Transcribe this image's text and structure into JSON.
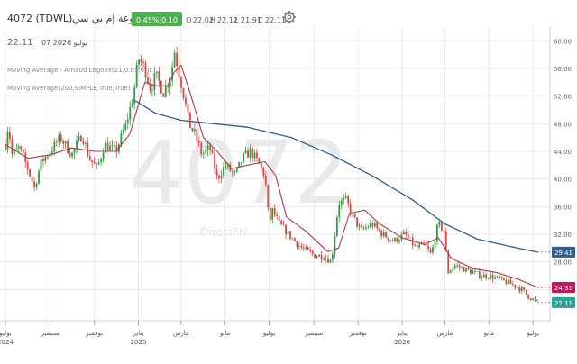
{
  "header": {
    "symbol": "4072 (TDWL)",
    "company": "مجموعة إم بي سي",
    "change_badge": "0.45%|0.10",
    "ohlc": {
      "o_label": "O",
      "o": "22.02",
      "h_label": "H",
      "h": "22.12",
      "l_label": "L",
      "l": "21.91",
      "c_label": "C",
      "c": "22.11"
    },
    "last_price": "22.11",
    "date": "07 2026 يوليو"
  },
  "watermark": {
    "symbol": "4072",
    "brand": "DirectFN"
  },
  "indicators": [
    {
      "label": "Moving Average - Arnaud Legoux(21,0.85,6,Tr...",
      "color": "#b03a48"
    },
    {
      "label": "Moving Average(200,SIMPLE,True,True)",
      "color": "#2f5d8c"
    }
  ],
  "colors": {
    "up": "#2e9e3e",
    "down": "#d94848",
    "alma": "#b03a48",
    "sma": "#2f5d8c",
    "grid": "#e4e4e4",
    "badge_green": "#4caf50",
    "last_badge": "#26a69a"
  },
  "icons": {
    "settings": "gear-icon"
  },
  "chart_data": {
    "type": "candlestick",
    "yaxis": {
      "min": 20,
      "max": 62,
      "ticks": [
        "60.00",
        "56.00",
        "52.00",
        "48.00",
        "44.00",
        "40.00",
        "36.00",
        "32.00",
        "28.00",
        "24.00"
      ],
      "position": "right",
      "grid": true
    },
    "xaxis": {
      "ticks": [
        {
          "label": "يوليو",
          "sub": "2024",
          "date": "2024-07-01"
        },
        {
          "label": "سبتمبر",
          "date": "2024-09-01"
        },
        {
          "label": "نوفمبر",
          "date": "2024-11-01"
        },
        {
          "label": "يناير",
          "sub": "2025",
          "date": "2025-01-01"
        },
        {
          "label": "مارس",
          "date": "2025-03-01"
        },
        {
          "label": "مايو",
          "date": "2025-05-01"
        },
        {
          "label": "يوليو",
          "date": "2025-07-01"
        },
        {
          "label": "سبتمبر",
          "date": "2025-09-01"
        },
        {
          "label": "نوفمبر",
          "date": "2025-11-01"
        },
        {
          "label": "يناير",
          "sub": "2026",
          "date": "2026-01-01"
        },
        {
          "label": "مارس",
          "date": "2026-03-01"
        },
        {
          "label": "مايو",
          "date": "2026-05-01"
        },
        {
          "label": "يوليو",
          "date": "2026-07-01"
        }
      ]
    },
    "price_path": [
      [
        "2024-07-01",
        45.0
      ],
      [
        "2024-07-05",
        48.0
      ],
      [
        "2024-07-10",
        43.5
      ],
      [
        "2024-07-20",
        44.5
      ],
      [
        "2024-08-01",
        41.5
      ],
      [
        "2024-08-10",
        38.8
      ],
      [
        "2024-08-20",
        42.5
      ],
      [
        "2024-09-01",
        44.0
      ],
      [
        "2024-09-15",
        46.0
      ],
      [
        "2024-10-01",
        43.5
      ],
      [
        "2024-10-15",
        46.5
      ],
      [
        "2024-10-25",
        43.0
      ],
      [
        "2024-11-05",
        41.5
      ],
      [
        "2024-11-15",
        45.0
      ],
      [
        "2024-12-01",
        44.0
      ],
      [
        "2024-12-15",
        48.0
      ],
      [
        "2024-12-25",
        52.0
      ],
      [
        "2025-01-01",
        57.5
      ],
      [
        "2025-01-10",
        56.0
      ],
      [
        "2025-01-18",
        53.0
      ],
      [
        "2025-01-25",
        55.0
      ],
      [
        "2025-02-05",
        52.5
      ],
      [
        "2025-02-15",
        55.0
      ],
      [
        "2025-02-20",
        58.5
      ],
      [
        "2025-02-25",
        56.0
      ],
      [
        "2025-03-05",
        52.0
      ],
      [
        "2025-03-12",
        48.0
      ],
      [
        "2025-03-20",
        46.5
      ],
      [
        "2025-03-30",
        43.5
      ],
      [
        "2025-04-10",
        44.5
      ],
      [
        "2025-04-20",
        40.0
      ],
      [
        "2025-05-01",
        42.0
      ],
      [
        "2025-05-15",
        40.5
      ],
      [
        "2025-05-25",
        43.0
      ],
      [
        "2025-06-05",
        44.0
      ],
      [
        "2025-06-15",
        42.5
      ],
      [
        "2025-06-25",
        40.5
      ],
      [
        "2025-07-01",
        33.5
      ],
      [
        "2025-07-05",
        35.5
      ],
      [
        "2025-07-15",
        33.5
      ],
      [
        "2025-08-01",
        31.5
      ],
      [
        "2025-08-15",
        30.0
      ],
      [
        "2025-09-01",
        29.0
      ],
      [
        "2025-09-15",
        28.8
      ],
      [
        "2025-09-25",
        28.0
      ],
      [
        "2025-10-05",
        36.5
      ],
      [
        "2025-10-15",
        37.0
      ],
      [
        "2025-10-25",
        34.5
      ],
      [
        "2025-11-05",
        32.5
      ],
      [
        "2025-11-20",
        33.5
      ],
      [
        "2025-12-05",
        32.0
      ],
      [
        "2025-12-20",
        31.0
      ],
      [
        "2026-01-05",
        32.0
      ],
      [
        "2026-01-20",
        30.0
      ],
      [
        "2026-02-01",
        30.5
      ],
      [
        "2026-02-10",
        29.0
      ],
      [
        "2026-02-20",
        33.5
      ],
      [
        "2026-02-28",
        32.5
      ],
      [
        "2026-03-05",
        26.5
      ],
      [
        "2026-03-15",
        27.5
      ],
      [
        "2026-04-01",
        26.8
      ],
      [
        "2026-04-20",
        26.0
      ],
      [
        "2026-05-01",
        26.0
      ],
      [
        "2026-05-15",
        25.5
      ],
      [
        "2026-06-01",
        24.8
      ],
      [
        "2026-06-15",
        24.0
      ],
      [
        "2026-06-25",
        23.0
      ],
      [
        "2026-07-07",
        22.11
      ]
    ],
    "series": [
      {
        "name": "Moving Average - Arnaud Legoux(21,0.85,6,Tr...",
        "type": "line",
        "points": [
          [
            "2024-07-01",
            45.0
          ],
          [
            "2024-08-01",
            43.0
          ],
          [
            "2024-09-01",
            43.5
          ],
          [
            "2024-10-01",
            44.5
          ],
          [
            "2024-11-01",
            44.0
          ],
          [
            "2024-12-01",
            44.0
          ],
          [
            "2024-12-20",
            46.5
          ],
          [
            "2025-01-10",
            54.0
          ],
          [
            "2025-01-25",
            53.5
          ],
          [
            "2025-02-10",
            53.5
          ],
          [
            "2025-02-20",
            55.5
          ],
          [
            "2025-03-01",
            56.5
          ],
          [
            "2025-03-15",
            52.0
          ],
          [
            "2025-04-01",
            46.0
          ],
          [
            "2025-04-20",
            44.0
          ],
          [
            "2025-05-10",
            41.5
          ],
          [
            "2025-06-01",
            42.0
          ],
          [
            "2025-06-25",
            42.5
          ],
          [
            "2025-07-10",
            40.5
          ],
          [
            "2025-07-25",
            34.5
          ],
          [
            "2025-08-20",
            32.5
          ],
          [
            "2025-09-20",
            29.5
          ],
          [
            "2025-10-05",
            30.0
          ],
          [
            "2025-10-20",
            35.0
          ],
          [
            "2025-11-10",
            35.5
          ],
          [
            "2025-12-01",
            33.5
          ],
          [
            "2026-01-01",
            31.5
          ],
          [
            "2026-02-01",
            30.5
          ],
          [
            "2026-02-20",
            31.5
          ],
          [
            "2026-03-10",
            28.5
          ],
          [
            "2026-04-10",
            27.0
          ],
          [
            "2026-05-10",
            26.5
          ],
          [
            "2026-06-10",
            25.5
          ],
          [
            "2026-07-07",
            24.31
          ]
        ]
      },
      {
        "name": "Moving Average(200,SIMPLE,True,True)",
        "type": "line",
        "points": [
          [
            "2024-12-25",
            51.5
          ],
          [
            "2025-01-25",
            49.5
          ],
          [
            "2025-03-01",
            48.5
          ],
          [
            "2025-04-15",
            48.0
          ],
          [
            "2025-06-01",
            47.5
          ],
          [
            "2025-08-01",
            46.0
          ],
          [
            "2025-09-25",
            43.5
          ],
          [
            "2025-11-20",
            40.5
          ],
          [
            "2026-01-15",
            37.0
          ],
          [
            "2026-03-01",
            33.5
          ],
          [
            "2026-04-15",
            31.3
          ],
          [
            "2026-06-01",
            30.2
          ],
          [
            "2026-07-07",
            29.41
          ]
        ]
      }
    ],
    "last_values": [
      {
        "value": "29.41",
        "y": 29.41,
        "color": "#2f5d8c"
      },
      {
        "value": "24.31",
        "y": 24.31,
        "color": "#c2185b"
      },
      {
        "value": "22.11",
        "y": 22.11,
        "color": "#26a69a"
      }
    ]
  }
}
